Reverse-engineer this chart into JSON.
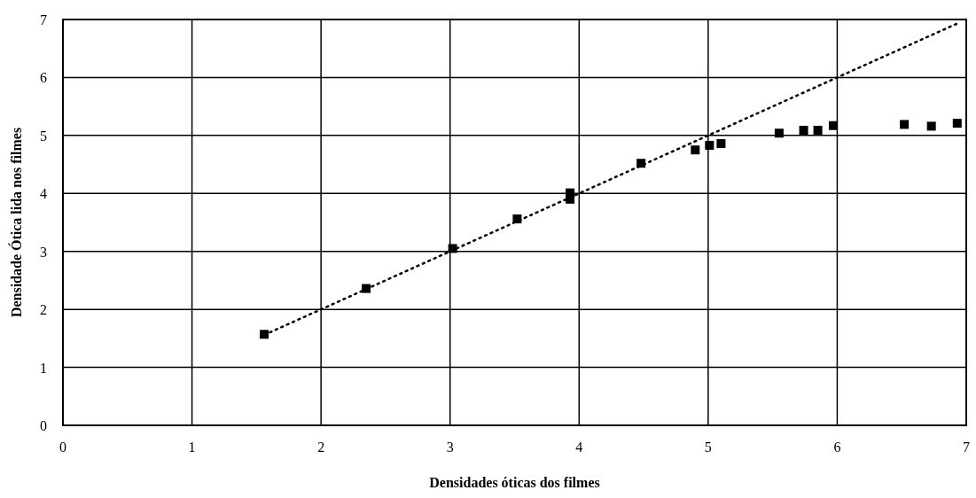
{
  "chart_data": {
    "type": "scatter",
    "xlabel": "Densidades óticas dos filmes",
    "ylabel": "Densidade Ótica lida nos filmes",
    "xlim": [
      0,
      7
    ],
    "ylim": [
      0,
      7
    ],
    "xticks": [
      0,
      1,
      2,
      3,
      4,
      5,
      6,
      7
    ],
    "yticks": [
      0,
      1,
      2,
      3,
      4,
      5,
      6,
      7
    ],
    "grid": true,
    "series": [
      {
        "color": "#000000",
        "marker": "square",
        "x": [
          1.56,
          2.35,
          3.02,
          3.52,
          3.93,
          3.93,
          4.48,
          4.9,
          5.01,
          5.1,
          5.55,
          5.74,
          5.85,
          5.97,
          6.52,
          6.73,
          6.93
        ],
        "values": [
          1.57,
          2.36,
          3.05,
          3.56,
          4.01,
          3.9,
          4.52,
          4.75,
          4.83,
          4.86,
          5.04,
          5.09,
          5.09,
          5.17,
          5.19,
          5.16,
          5.21
        ]
      },
      {
        "type": "line",
        "color": "#000000",
        "line_style": "dotted",
        "x": [
          1.56,
          6.95
        ],
        "values": [
          1.56,
          6.95
        ]
      }
    ]
  }
}
